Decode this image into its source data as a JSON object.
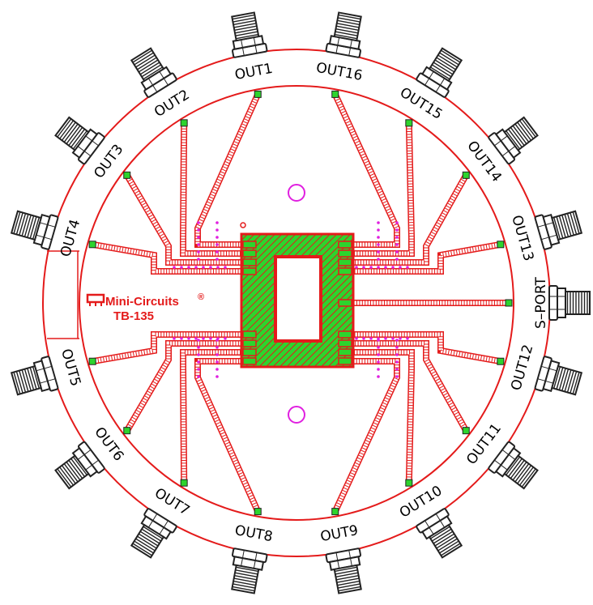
{
  "board": {
    "brand_name": "Mini-Circuits",
    "brand_mark": "®",
    "model": "TB-135",
    "input_port": "S–PORT",
    "outputs": [
      "OUT1",
      "OUT2",
      "OUT3",
      "OUT4",
      "OUT5",
      "OUT6",
      "OUT7",
      "OUT8",
      "OUT9",
      "OUT10",
      "OUT11",
      "OUT12",
      "OUT13",
      "OUT14",
      "OUT15",
      "OUT16"
    ]
  },
  "colors": {
    "trace": "#e41b1b",
    "pad": "#2dd42d",
    "mounting_hole": "#e020e0",
    "via": "#e020e0",
    "connector": "#222222"
  }
}
